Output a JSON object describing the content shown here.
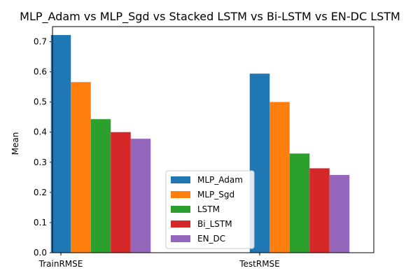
{
  "chart_data": {
    "type": "bar",
    "title": "MLP_Adam vs MLP_Sgd vs Stacked LSTM vs Bi-LSTM vs EN-DC LSTM",
    "xlabel": "",
    "ylabel": "Mean",
    "categories": [
      "TrainRMSE",
      "TestRMSE"
    ],
    "ylim": [
      0,
      0.75
    ],
    "yticks": [
      "0.0",
      "0.1",
      "0.2",
      "0.3",
      "0.4",
      "0.5",
      "0.6",
      "0.7"
    ],
    "grid": false,
    "legend_position": "lower-center",
    "series": [
      {
        "name": "MLP_Adam",
        "color": "#1f77b4",
        "values": [
          0.722,
          0.594
        ]
      },
      {
        "name": "MLP_Sgd",
        "color": "#ff7f0e",
        "values": [
          0.566,
          0.5
        ]
      },
      {
        "name": "LSTM",
        "color": "#2ca02c",
        "values": [
          0.443,
          0.329
        ]
      },
      {
        "name": "Bi_LSTM",
        "color": "#d62728",
        "values": [
          0.4,
          0.28
        ]
      },
      {
        "name": "EN_DC",
        "color": "#9467bd",
        "values": [
          0.378,
          0.258
        ]
      }
    ]
  }
}
